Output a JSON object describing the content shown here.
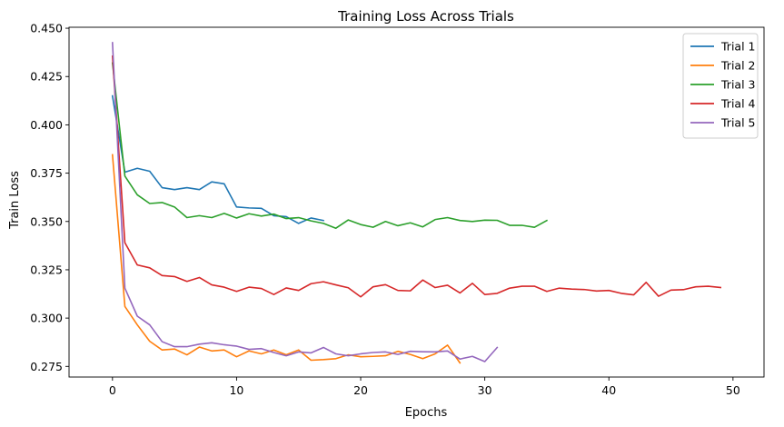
{
  "chart_data": {
    "type": "line",
    "title": "Training Loss Across Trials",
    "xlabel": "Epochs",
    "ylabel": "Train Loss",
    "xlim": [
      -3.5,
      52.5
    ],
    "ylim": [
      0.2695,
      0.4505
    ],
    "xticks": [
      0,
      10,
      20,
      30,
      40,
      50
    ],
    "yticks": [
      0.275,
      0.3,
      0.325,
      0.35,
      0.375,
      0.4,
      0.425,
      0.45
    ],
    "grid": false,
    "legend_position": "top-right",
    "series": [
      {
        "name": "Trial 1",
        "color": "#1f77b4",
        "x": [
          0,
          1,
          2,
          3,
          4,
          5,
          6,
          7,
          8,
          9,
          10,
          11,
          12,
          13,
          14,
          15,
          16,
          17
        ],
        "y": [
          0.415,
          0.3755,
          0.3775,
          0.376,
          0.3675,
          0.3665,
          0.3675,
          0.3665,
          0.3705,
          0.3695,
          0.3575,
          0.357,
          0.3568,
          0.353,
          0.3525,
          0.349,
          0.3518,
          0.3505
        ]
      },
      {
        "name": "Trial 2",
        "color": "#ff7f0e",
        "x": [
          0,
          1,
          2,
          3,
          4,
          5,
          6,
          7,
          8,
          9,
          10,
          11,
          12,
          13,
          14,
          15,
          16,
          17,
          18,
          19,
          20,
          21,
          22,
          23,
          24,
          25,
          26,
          27,
          28
        ],
        "y": [
          0.3845,
          0.306,
          0.2965,
          0.288,
          0.2835,
          0.284,
          0.281,
          0.285,
          0.283,
          0.2835,
          0.28,
          0.283,
          0.2815,
          0.2835,
          0.281,
          0.2835,
          0.2782,
          0.2785,
          0.279,
          0.281,
          0.28,
          0.2802,
          0.2805,
          0.2828,
          0.2812,
          0.279,
          0.2815,
          0.286,
          0.2768
        ]
      },
      {
        "name": "Trial 3",
        "color": "#2ca02c",
        "x": [
          0,
          1,
          2,
          3,
          4,
          5,
          6,
          7,
          8,
          9,
          10,
          11,
          12,
          13,
          14,
          15,
          16,
          17,
          18,
          19,
          20,
          21,
          22,
          23,
          24,
          25,
          26,
          27,
          28,
          29,
          30,
          31,
          32,
          33,
          34,
          35
        ],
        "y": [
          0.432,
          0.3735,
          0.3638,
          0.3593,
          0.3598,
          0.3575,
          0.352,
          0.353,
          0.352,
          0.3542,
          0.3518,
          0.354,
          0.3528,
          0.3538,
          0.3515,
          0.352,
          0.3503,
          0.349,
          0.3465,
          0.3508,
          0.3484,
          0.347,
          0.35,
          0.3478,
          0.3493,
          0.3472,
          0.351,
          0.352,
          0.3505,
          0.35,
          0.3507,
          0.3506,
          0.348,
          0.348,
          0.347,
          0.3505
        ]
      },
      {
        "name": "Trial 4",
        "color": "#d62728",
        "x": [
          0,
          1,
          2,
          3,
          4,
          5,
          6,
          7,
          8,
          9,
          10,
          11,
          12,
          13,
          14,
          15,
          16,
          17,
          18,
          19,
          20,
          21,
          22,
          23,
          24,
          25,
          26,
          27,
          28,
          29,
          30,
          31,
          32,
          33,
          34,
          35,
          36,
          37,
          38,
          39,
          40,
          41,
          42,
          43,
          44,
          45,
          46,
          47,
          48,
          49
        ],
        "y": [
          0.4355,
          0.339,
          0.3275,
          0.326,
          0.322,
          0.3215,
          0.319,
          0.321,
          0.3172,
          0.316,
          0.3138,
          0.316,
          0.3153,
          0.3122,
          0.3156,
          0.3143,
          0.3178,
          0.3188,
          0.3172,
          0.3157,
          0.311,
          0.3162,
          0.3173,
          0.3143,
          0.3141,
          0.3197,
          0.3158,
          0.317,
          0.313,
          0.318,
          0.3122,
          0.3128,
          0.3155,
          0.3165,
          0.3165,
          0.3138,
          0.3155,
          0.315,
          0.3148,
          0.314,
          0.3143,
          0.3128,
          0.312,
          0.3185,
          0.3113,
          0.3145,
          0.3147,
          0.3162,
          0.3165,
          0.3158
        ]
      },
      {
        "name": "Trial 5",
        "color": "#9467bd",
        "x": [
          0,
          1,
          2,
          3,
          4,
          5,
          6,
          7,
          8,
          9,
          10,
          11,
          12,
          13,
          14,
          15,
          16,
          17,
          18,
          19,
          20,
          21,
          22,
          23,
          24,
          25,
          26,
          27,
          28,
          29,
          30,
          31
        ],
        "y": [
          0.4425,
          0.3155,
          0.301,
          0.2965,
          0.2878,
          0.2852,
          0.2852,
          0.2865,
          0.2872,
          0.2862,
          0.2855,
          0.2838,
          0.2842,
          0.2822,
          0.2805,
          0.2825,
          0.282,
          0.2848,
          0.2815,
          0.2805,
          0.2815,
          0.2822,
          0.2825,
          0.2812,
          0.2828,
          0.2826,
          0.2825,
          0.283,
          0.2788,
          0.2802,
          0.2775,
          0.2848
        ]
      }
    ]
  }
}
